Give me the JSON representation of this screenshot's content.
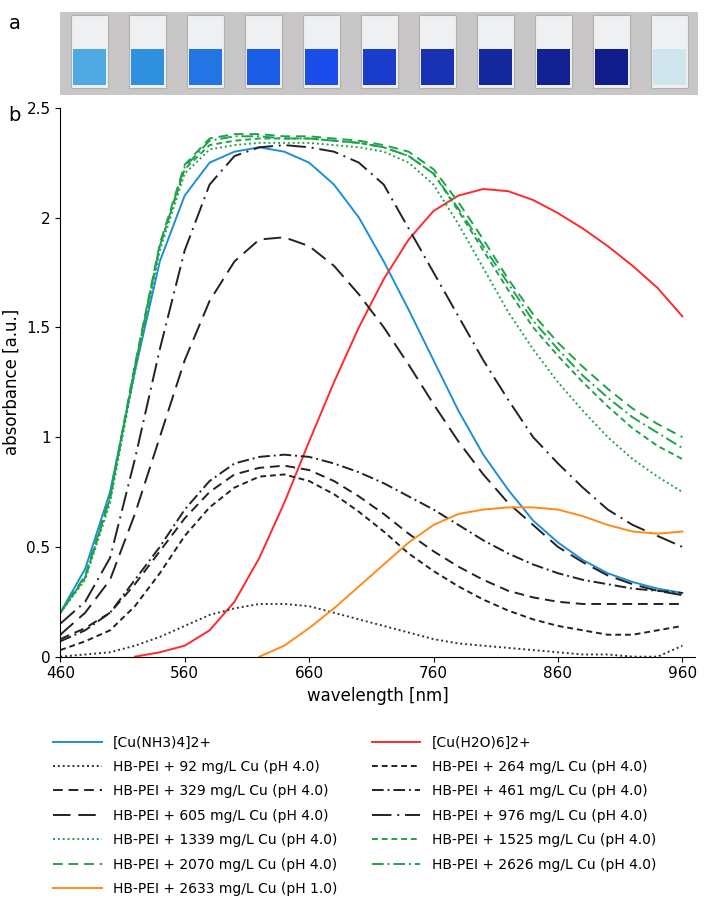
{
  "photo": {
    "label": "a",
    "cuvette_colors": [
      "#4fa9e2",
      "#2f90e0",
      "#2275e2",
      "#1b5ce6",
      "#1a4de9",
      "#1a3ccb",
      "#1931b3",
      "#15289d",
      "#122292",
      "#101d8a",
      "#cfe4ec"
    ]
  },
  "chart_data": {
    "type": "line",
    "panel_label": "b",
    "x_label": "wavelength [nm]",
    "y_label": "absorbance [a.u.]",
    "x": [
      460,
      480,
      500,
      520,
      540,
      560,
      580,
      600,
      620,
      640,
      660,
      680,
      700,
      720,
      740,
      760,
      780,
      800,
      820,
      840,
      860,
      880,
      900,
      920,
      940,
      960
    ],
    "xlim": [
      460,
      970
    ],
    "xticks": [
      460,
      560,
      660,
      760,
      860,
      960
    ],
    "ylim": [
      0,
      2.5
    ],
    "yticks": [
      0,
      0.5,
      1,
      1.5,
      2,
      2.5
    ],
    "grid": false,
    "legend": "upper center",
    "series": [
      {
        "name": "[Cu(NH3)4]2+",
        "color": "#1f8ed8",
        "line_style": "solid",
        "values": [
          0.2,
          0.4,
          0.75,
          1.3,
          1.8,
          2.1,
          2.25,
          2.3,
          2.32,
          2.3,
          2.25,
          2.15,
          2.0,
          1.8,
          1.58,
          1.35,
          1.12,
          0.92,
          0.76,
          0.62,
          0.52,
          0.44,
          0.38,
          0.34,
          0.31,
          0.29
        ]
      },
      {
        "name": "[Cu(H2O)6]2+",
        "color": "#ff2a2a",
        "line_style": "solid",
        "values": [
          null,
          null,
          null,
          0.0,
          0.02,
          0.05,
          0.12,
          0.25,
          0.45,
          0.7,
          0.98,
          1.25,
          1.5,
          1.72,
          1.9,
          2.03,
          2.1,
          2.13,
          2.12,
          2.08,
          2.02,
          1.95,
          1.87,
          1.78,
          1.68,
          1.55
        ]
      },
      {
        "name": "HB-PEI + 92 mg/L Cu (pH 4.0)",
        "color": "#333333",
        "line_style": "dotted",
        "values": [
          0.0,
          0.01,
          0.02,
          0.05,
          0.09,
          0.14,
          0.19,
          0.22,
          0.24,
          0.24,
          0.23,
          0.2,
          0.17,
          0.14,
          0.11,
          0.08,
          0.06,
          0.05,
          0.04,
          0.03,
          0.02,
          0.01,
          0.01,
          0.0,
          0.0,
          0.05
        ]
      },
      {
        "name": "HB-PEI + 264 mg/L Cu (pH 4.0)",
        "color": "#222222",
        "line_style": "short_dashed",
        "values": [
          0.03,
          0.07,
          0.12,
          0.23,
          0.38,
          0.55,
          0.68,
          0.77,
          0.82,
          0.83,
          0.8,
          0.74,
          0.66,
          0.57,
          0.47,
          0.39,
          0.32,
          0.26,
          0.21,
          0.17,
          0.14,
          0.12,
          0.1,
          0.1,
          0.12,
          0.14
        ]
      },
      {
        "name": "HB-PEI + 329 mg/L Cu (pH 4.0)",
        "color": "#222222",
        "line_style": "dashed",
        "values": [
          0.08,
          0.13,
          0.2,
          0.33,
          0.48,
          0.63,
          0.75,
          0.83,
          0.86,
          0.87,
          0.85,
          0.8,
          0.73,
          0.65,
          0.56,
          0.48,
          0.41,
          0.35,
          0.3,
          0.27,
          0.25,
          0.24,
          0.24,
          0.24,
          0.24,
          0.24
        ]
      },
      {
        "name": "HB-PEI + 461 mg/L Cu (pH 4.0)",
        "color": "#222222",
        "line_style": "dashdot",
        "values": [
          0.07,
          0.12,
          0.2,
          0.35,
          0.5,
          0.67,
          0.8,
          0.88,
          0.91,
          0.92,
          0.91,
          0.88,
          0.84,
          0.79,
          0.73,
          0.67,
          0.6,
          0.53,
          0.47,
          0.42,
          0.38,
          0.35,
          0.33,
          0.31,
          0.3,
          0.29
        ]
      },
      {
        "name": "HB-PEI + 605 mg/L Cu (pH 4.0)",
        "color": "#222222",
        "line_style": "long_dashed",
        "values": [
          0.1,
          0.2,
          0.35,
          0.65,
          1.0,
          1.35,
          1.62,
          1.8,
          1.9,
          1.91,
          1.87,
          1.78,
          1.65,
          1.5,
          1.33,
          1.15,
          0.98,
          0.83,
          0.7,
          0.6,
          0.5,
          0.43,
          0.37,
          0.33,
          0.3,
          0.28
        ]
      },
      {
        "name": "HB-PEI + 976 mg/L Cu (pH 4.0)",
        "color": "#222222",
        "line_style": "long_dashdot",
        "values": [
          0.15,
          0.25,
          0.45,
          0.9,
          1.4,
          1.85,
          2.15,
          2.28,
          2.32,
          2.33,
          2.32,
          2.3,
          2.25,
          2.15,
          1.95,
          1.75,
          1.55,
          1.35,
          1.17,
          1.0,
          0.88,
          0.77,
          0.67,
          0.6,
          0.55,
          0.5
        ]
      },
      {
        "name": "HB-PEI + 1339 mg/L Cu (pH 4.0)",
        "color": "#1fa34a",
        "line_style": "dotted",
        "values": [
          0.2,
          0.35,
          0.7,
          1.3,
          1.85,
          2.2,
          2.31,
          2.33,
          2.34,
          2.34,
          2.34,
          2.33,
          2.32,
          2.3,
          2.25,
          2.15,
          1.97,
          1.77,
          1.57,
          1.4,
          1.25,
          1.12,
          1.0,
          0.9,
          0.82,
          0.75
        ]
      },
      {
        "name": "HB-PEI + 1525 mg/L Cu (pH 4.0)",
        "color": "#1fa34a",
        "line_style": "short_dashed",
        "values": [
          0.2,
          0.36,
          0.72,
          1.32,
          1.87,
          2.22,
          2.33,
          2.35,
          2.36,
          2.36,
          2.36,
          2.35,
          2.34,
          2.32,
          2.28,
          2.2,
          2.03,
          1.85,
          1.67,
          1.5,
          1.37,
          1.25,
          1.14,
          1.04,
          0.96,
          0.9
        ]
      },
      {
        "name": "HB-PEI + 2070 mg/L Cu (pH 4.0)",
        "color": "#1fa34a",
        "line_style": "dashed",
        "values": [
          0.2,
          0.37,
          0.73,
          1.33,
          1.88,
          2.24,
          2.36,
          2.38,
          2.38,
          2.37,
          2.37,
          2.36,
          2.35,
          2.33,
          2.3,
          2.22,
          2.07,
          1.9,
          1.72,
          1.56,
          1.43,
          1.32,
          1.22,
          1.13,
          1.06,
          1.0
        ]
      },
      {
        "name": "HB-PEI + 2626 mg/L Cu (pH 4.0)",
        "color": "#1fa34a",
        "line_style": "dashdot",
        "values": [
          0.2,
          0.36,
          0.72,
          1.32,
          1.87,
          2.23,
          2.35,
          2.37,
          2.37,
          2.36,
          2.36,
          2.35,
          2.34,
          2.32,
          2.28,
          2.2,
          2.04,
          1.87,
          1.7,
          1.53,
          1.4,
          1.28,
          1.18,
          1.09,
          1.02,
          0.95
        ]
      },
      {
        "name": "HB-PEI + 2633 mg/L Cu (pH 1.0)",
        "color": "#ff8c1a",
        "line_style": "solid",
        "values": [
          null,
          null,
          null,
          null,
          null,
          null,
          null,
          null,
          0.0,
          0.05,
          0.13,
          0.22,
          0.32,
          0.42,
          0.52,
          0.6,
          0.65,
          0.67,
          0.68,
          0.68,
          0.67,
          0.64,
          0.6,
          0.57,
          0.56,
          0.57
        ]
      }
    ]
  }
}
